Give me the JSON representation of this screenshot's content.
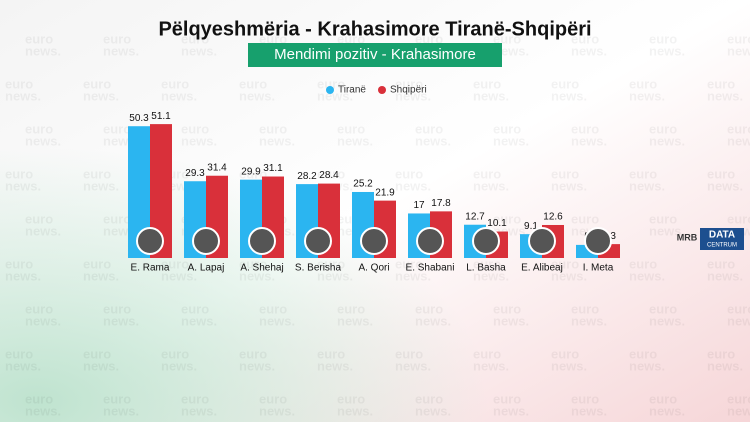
{
  "chart_data": {
    "type": "bar",
    "title": "Pëlqyeshmëria - Krahasimore Tiranë-Shqipëri",
    "subtitle": "Mendimi pozitiv - Krahasimore",
    "categories": [
      "E. Rama",
      "A. Lapaj",
      "A. Shehaj",
      "S. Berisha",
      "A. Qori",
      "E. Shabani",
      "L. Basha",
      "E. Alibeaj",
      "I. Meta"
    ],
    "series": [
      {
        "name": "Tiranë",
        "color": "#2bb5f0",
        "values": [
          50.3,
          29.3,
          29.9,
          28.2,
          25.2,
          17,
          12.7,
          9.1,
          5
        ]
      },
      {
        "name": "Shqipëri",
        "color": "#d9303a",
        "values": [
          51.1,
          31.4,
          31.1,
          28.4,
          21.9,
          17.8,
          10.1,
          12.6,
          5.3
        ]
      }
    ]
  },
  "watermark": [
    "euro",
    "news."
  ],
  "logos": {
    "mrb": "MRB",
    "data": "DATA",
    "centrum": "CENTRUM"
  }
}
